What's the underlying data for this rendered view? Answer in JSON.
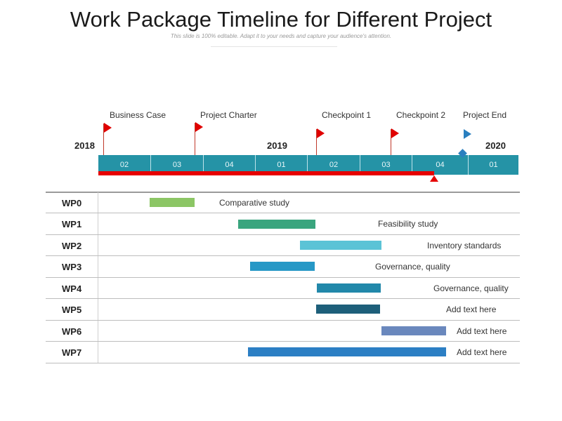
{
  "header": {
    "title": "Work Package Timeline for Different Project",
    "subtitle": "This slide is 100% editable. Adapt it to your needs and capture your audience's attention."
  },
  "milestones": [
    {
      "label": "Business Case",
      "flag_color": "#e00000"
    },
    {
      "label": "Project Charter",
      "flag_color": "#e00000"
    },
    {
      "label": "Checkpoint 1",
      "flag_color": "#e00000"
    },
    {
      "label": "Checkpoint 2",
      "flag_color": "#e00000"
    },
    {
      "label": "Project End",
      "flag_color": "#2a7fbf"
    }
  ],
  "years": [
    "2018",
    "2019",
    "2020"
  ],
  "quarters": [
    "02",
    "03",
    "04",
    "01",
    "02",
    "03",
    "04",
    "01"
  ],
  "colors": {
    "timeline_bar": "#2593a6",
    "progress_bar": "#e60000"
  },
  "work_packages": [
    {
      "id": "WP0",
      "task": "Comparative study",
      "color": "#8cc665"
    },
    {
      "id": "WP1",
      "task": "Feasibility study",
      "color": "#3aa57e"
    },
    {
      "id": "WP2",
      "task": "Inventory standards",
      "color": "#5bc3d6"
    },
    {
      "id": "WP3",
      "task": "Governance, quality",
      "color": "#2698c6"
    },
    {
      "id": "WP4",
      "task": "Governance, quality",
      "color": "#2288aa"
    },
    {
      "id": "WP5",
      "task": "Add text here",
      "color": "#1e5f7a"
    },
    {
      "id": "WP6",
      "task": "Add text here",
      "color": "#6a88bd"
    },
    {
      "id": "WP7",
      "task": "Add text here",
      "color": "#2c7fc4"
    }
  ]
}
